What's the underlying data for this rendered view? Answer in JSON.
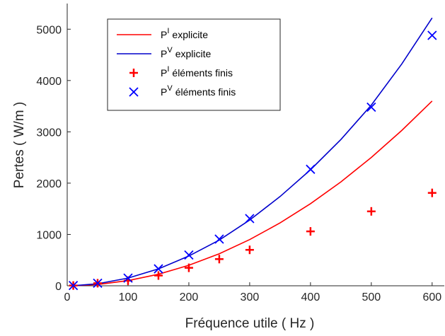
{
  "chart_data": {
    "type": "line",
    "xlabel": "Fréquence utile ( Hz )",
    "ylabel": "Pertes ( W/m )",
    "xlim": [
      0,
      620
    ],
    "ylim": [
      0,
      5500
    ],
    "xticks": [
      0,
      100,
      200,
      300,
      400,
      500,
      600
    ],
    "yticks": [
      0,
      1000,
      2000,
      3000,
      4000,
      5000
    ],
    "grid": false,
    "legend_position": "top-left",
    "series": [
      {
        "name_main": "P",
        "name_sup": "I",
        "name_rest": "explicite",
        "kind": "line",
        "color": "#ff0000",
        "x": [
          10,
          50,
          100,
          150,
          200,
          250,
          300,
          350,
          400,
          450,
          500,
          550,
          600
        ],
        "y": [
          1,
          25,
          100,
          225,
          400,
          625,
          900,
          1225,
          1600,
          2025,
          2500,
          3025,
          3600
        ]
      },
      {
        "name_main": "P",
        "name_sup": "V",
        "name_rest": "explicite",
        "kind": "line",
        "color": "#0000cc",
        "x": [
          10,
          50,
          100,
          150,
          200,
          250,
          300,
          350,
          400,
          450,
          500,
          550,
          600
        ],
        "y": [
          2,
          40,
          150,
          330,
          580,
          890,
          1280,
          1740,
          2260,
          2850,
          3520,
          4320,
          5220
        ]
      },
      {
        "name_main": "P",
        "name_sup": "I",
        "name_rest": "éléments finis",
        "kind": "marker",
        "marker": "plus",
        "color": "#ff0000",
        "x": [
          10,
          50,
          100,
          150,
          200,
          250,
          300,
          400,
          500,
          600
        ],
        "y": [
          5,
          50,
          100,
          200,
          350,
          520,
          700,
          1060,
          1450,
          1810
        ]
      },
      {
        "name_main": "P",
        "name_sup": "V",
        "name_rest": "éléments finis",
        "kind": "marker",
        "marker": "x",
        "color": "#0000ff",
        "x": [
          10,
          50,
          100,
          150,
          200,
          250,
          300,
          400,
          500,
          600
        ],
        "y": [
          5,
          50,
          150,
          330,
          600,
          910,
          1310,
          2270,
          3480,
          4880
        ]
      }
    ]
  }
}
